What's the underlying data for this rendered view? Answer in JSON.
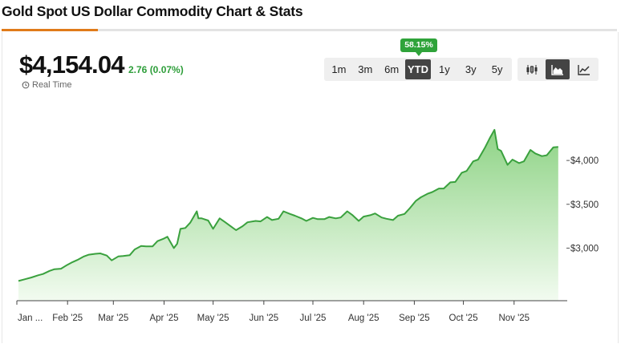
{
  "page": {
    "title": "Gold Spot US Dollar Commodity Chart & Stats"
  },
  "quote": {
    "price": "$4,154.04",
    "change": "2.76 (0.07%)",
    "realtime_label": "Real Time"
  },
  "ranges": {
    "items": [
      "1m",
      "3m",
      "6m",
      "YTD",
      "1y",
      "3y",
      "5y"
    ],
    "selected": "YTD",
    "badge": "58.15%"
  },
  "chart_types": {
    "items": [
      "candlestick-icon",
      "area-chart-icon",
      "line-chart-icon"
    ],
    "selected": "area-chart-icon"
  },
  "colors": {
    "line": "#3aa13e",
    "fill_top": "#8ed385",
    "fill_bottom": "#f2fbf0",
    "positive": "#2e9e3a",
    "active_tab": "#444444"
  },
  "chart_data": {
    "type": "area",
    "x_tick_labels": [
      "Jan ...",
      "Feb '25",
      "Mar '25",
      "Apr '25",
      "May '25",
      "Jun '25",
      "Jul '25",
      "Aug '25",
      "Sep '25",
      "Oct '25",
      "Nov '25"
    ],
    "y_tick_labels": [
      "$3,000",
      "$3,500",
      "$4,000"
    ],
    "y_ticks": [
      3000,
      3500,
      4000
    ],
    "ylim": [
      2400,
      4550
    ],
    "grid": false,
    "x": [
      "2025-01-02",
      "2025-01-06",
      "2025-01-10",
      "2025-01-14",
      "2025-01-17",
      "2025-01-21",
      "2025-01-24",
      "2025-01-28",
      "2025-01-31",
      "2025-02-04",
      "2025-02-07",
      "2025-02-11",
      "2025-02-14",
      "2025-02-18",
      "2025-02-21",
      "2025-02-25",
      "2025-02-28",
      "2025-03-04",
      "2025-03-07",
      "2025-03-11",
      "2025-03-14",
      "2025-03-18",
      "2025-03-21",
      "2025-03-25",
      "2025-03-28",
      "2025-04-01",
      "2025-04-03",
      "2025-04-07",
      "2025-04-09",
      "2025-04-11",
      "2025-04-14",
      "2025-04-17",
      "2025-04-21",
      "2025-04-22",
      "2025-04-24",
      "2025-04-28",
      "2025-05-01",
      "2025-05-05",
      "2025-05-08",
      "2025-05-12",
      "2025-05-15",
      "2025-05-19",
      "2025-05-22",
      "2025-05-27",
      "2025-05-30",
      "2025-06-03",
      "2025-06-06",
      "2025-06-10",
      "2025-06-13",
      "2025-06-17",
      "2025-06-20",
      "2025-06-24",
      "2025-06-27",
      "2025-07-01",
      "2025-07-04",
      "2025-07-08",
      "2025-07-11",
      "2025-07-15",
      "2025-07-18",
      "2025-07-22",
      "2025-07-25",
      "2025-07-29",
      "2025-08-01",
      "2025-08-05",
      "2025-08-08",
      "2025-08-12",
      "2025-08-15",
      "2025-08-19",
      "2025-08-22",
      "2025-08-26",
      "2025-08-29",
      "2025-09-02",
      "2025-09-05",
      "2025-09-09",
      "2025-09-12",
      "2025-09-16",
      "2025-09-19",
      "2025-09-23",
      "2025-09-26",
      "2025-09-30",
      "2025-10-03",
      "2025-10-07",
      "2025-10-10",
      "2025-10-14",
      "2025-10-17",
      "2025-10-20",
      "2025-10-22",
      "2025-10-24",
      "2025-10-28",
      "2025-10-31",
      "2025-11-04",
      "2025-11-07",
      "2025-11-11",
      "2025-11-14",
      "2025-11-18",
      "2025-11-21",
      "2025-11-25",
      "2025-11-28"
    ],
    "y": [
      2625,
      2645,
      2665,
      2690,
      2705,
      2740,
      2760,
      2765,
      2800,
      2840,
      2865,
      2905,
      2925,
      2935,
      2940,
      2915,
      2860,
      2905,
      2910,
      2920,
      2985,
      3025,
      3020,
      3020,
      3080,
      3110,
      3130,
      3000,
      3050,
      3220,
      3230,
      3290,
      3420,
      3340,
      3340,
      3315,
      3220,
      3340,
      3300,
      3245,
      3205,
      3250,
      3295,
      3310,
      3305,
      3355,
      3320,
      3335,
      3420,
      3390,
      3370,
      3340,
      3310,
      3345,
      3330,
      3330,
      3355,
      3340,
      3350,
      3420,
      3380,
      3310,
      3360,
      3375,
      3395,
      3350,
      3335,
      3320,
      3370,
      3390,
      3450,
      3540,
      3580,
      3620,
      3640,
      3680,
      3680,
      3750,
      3755,
      3860,
      3880,
      3990,
      4010,
      4140,
      4250,
      4350,
      4130,
      4110,
      3950,
      4010,
      3970,
      3990,
      4120,
      4080,
      4050,
      4060,
      4150,
      4154
    ]
  }
}
